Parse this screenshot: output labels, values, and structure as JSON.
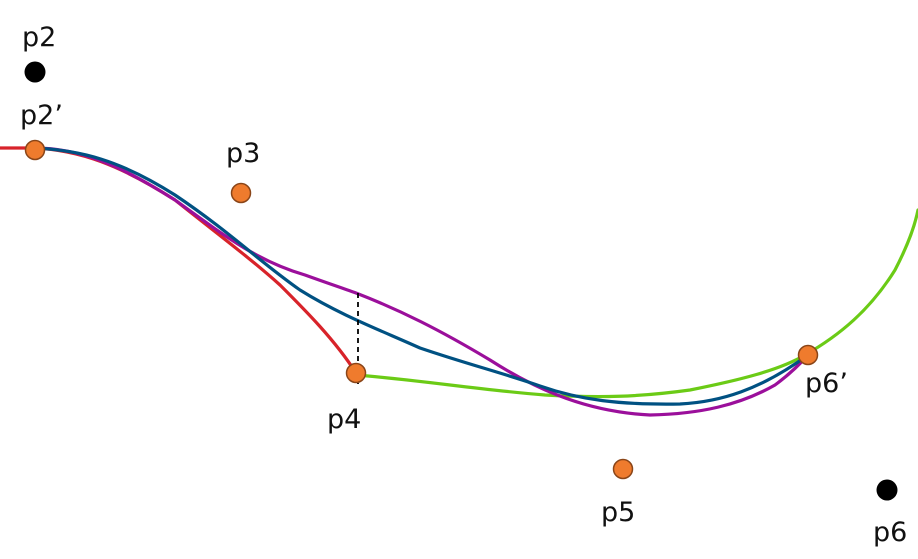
{
  "points": [
    {
      "id": "p2",
      "label": "p2",
      "kind": "control-black"
    },
    {
      "id": "p2prime",
      "label": "p2’",
      "kind": "knot-orange"
    },
    {
      "id": "p3",
      "label": "p3",
      "kind": "knot-orange"
    },
    {
      "id": "p4",
      "label": "p4",
      "kind": "knot-orange"
    },
    {
      "id": "p5",
      "label": "p5",
      "kind": "knot-orange"
    },
    {
      "id": "p6prime",
      "label": "p6’",
      "kind": "knot-orange"
    },
    {
      "id": "p6",
      "label": "p6",
      "kind": "control-black"
    }
  ],
  "colors": {
    "red_curve": "#d8232a",
    "green_curve": "#6bcb16",
    "purple_curve": "#9b0f9b",
    "blue_curve": "#005182",
    "knot_fill": "#ef7b2d",
    "knot_stroke": "#8a4518",
    "control_fill": "#000000",
    "dashed": "#000000"
  }
}
